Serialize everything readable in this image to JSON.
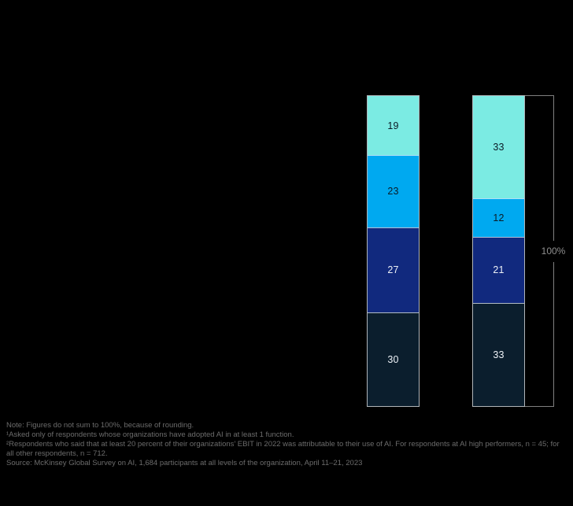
{
  "colors": {
    "background": "#000000",
    "segment_border": "#EBF1F7",
    "bracket_line": "#808080",
    "bracket_label_text": "#8F8F8F",
    "footer_text": "#6C6C6C"
  },
  "chart_data": {
    "type": "bar",
    "stacked": true,
    "orientation": "vertical",
    "unit": "percent",
    "ylim": [
      0,
      100
    ],
    "grid": false,
    "legend": false,
    "bracket_label": "100%",
    "segment_order": "top-to-bottom",
    "bars": [
      {
        "name": "bar-1",
        "segments": [
          {
            "value": 19,
            "fill": "#7BEBE3",
            "label_color": "#0B1B26"
          },
          {
            "value": 23,
            "fill": "#00A9F0",
            "label_color": "#0B1B26"
          },
          {
            "value": 27,
            "fill": "#11297E",
            "label_color": "#EDF1F6"
          },
          {
            "value": 30,
            "fill": "#0B1E2D",
            "label_color": "#EDF1F6"
          }
        ]
      },
      {
        "name": "bar-2",
        "segments": [
          {
            "value": 33,
            "fill": "#7BEBE3",
            "label_color": "#0B1B26"
          },
          {
            "value": 12,
            "fill": "#00A9F0",
            "label_color": "#0B1B26"
          },
          {
            "value": 21,
            "fill": "#11297E",
            "label_color": "#EDF1F6"
          },
          {
            "value": 33,
            "fill": "#0B1E2D",
            "label_color": "#EDF1F6"
          }
        ]
      }
    ]
  },
  "footer": {
    "note": "Note: Figures do not sum to 100%, because of rounding.",
    "footnote1": "¹Asked only of respondents whose organizations have adopted AI in at least 1 function.",
    "footnote2": "²Respondents who said that at least 20 percent of their organizations’ EBIT in 2022 was attributable to their use of AI. For respondents at AI high performers, n = 45; for all other respondents, n = 712.",
    "source": "Source: McKinsey Global Survey on AI, 1,684 participants at all levels of the organization, April 11–21, 2023"
  }
}
